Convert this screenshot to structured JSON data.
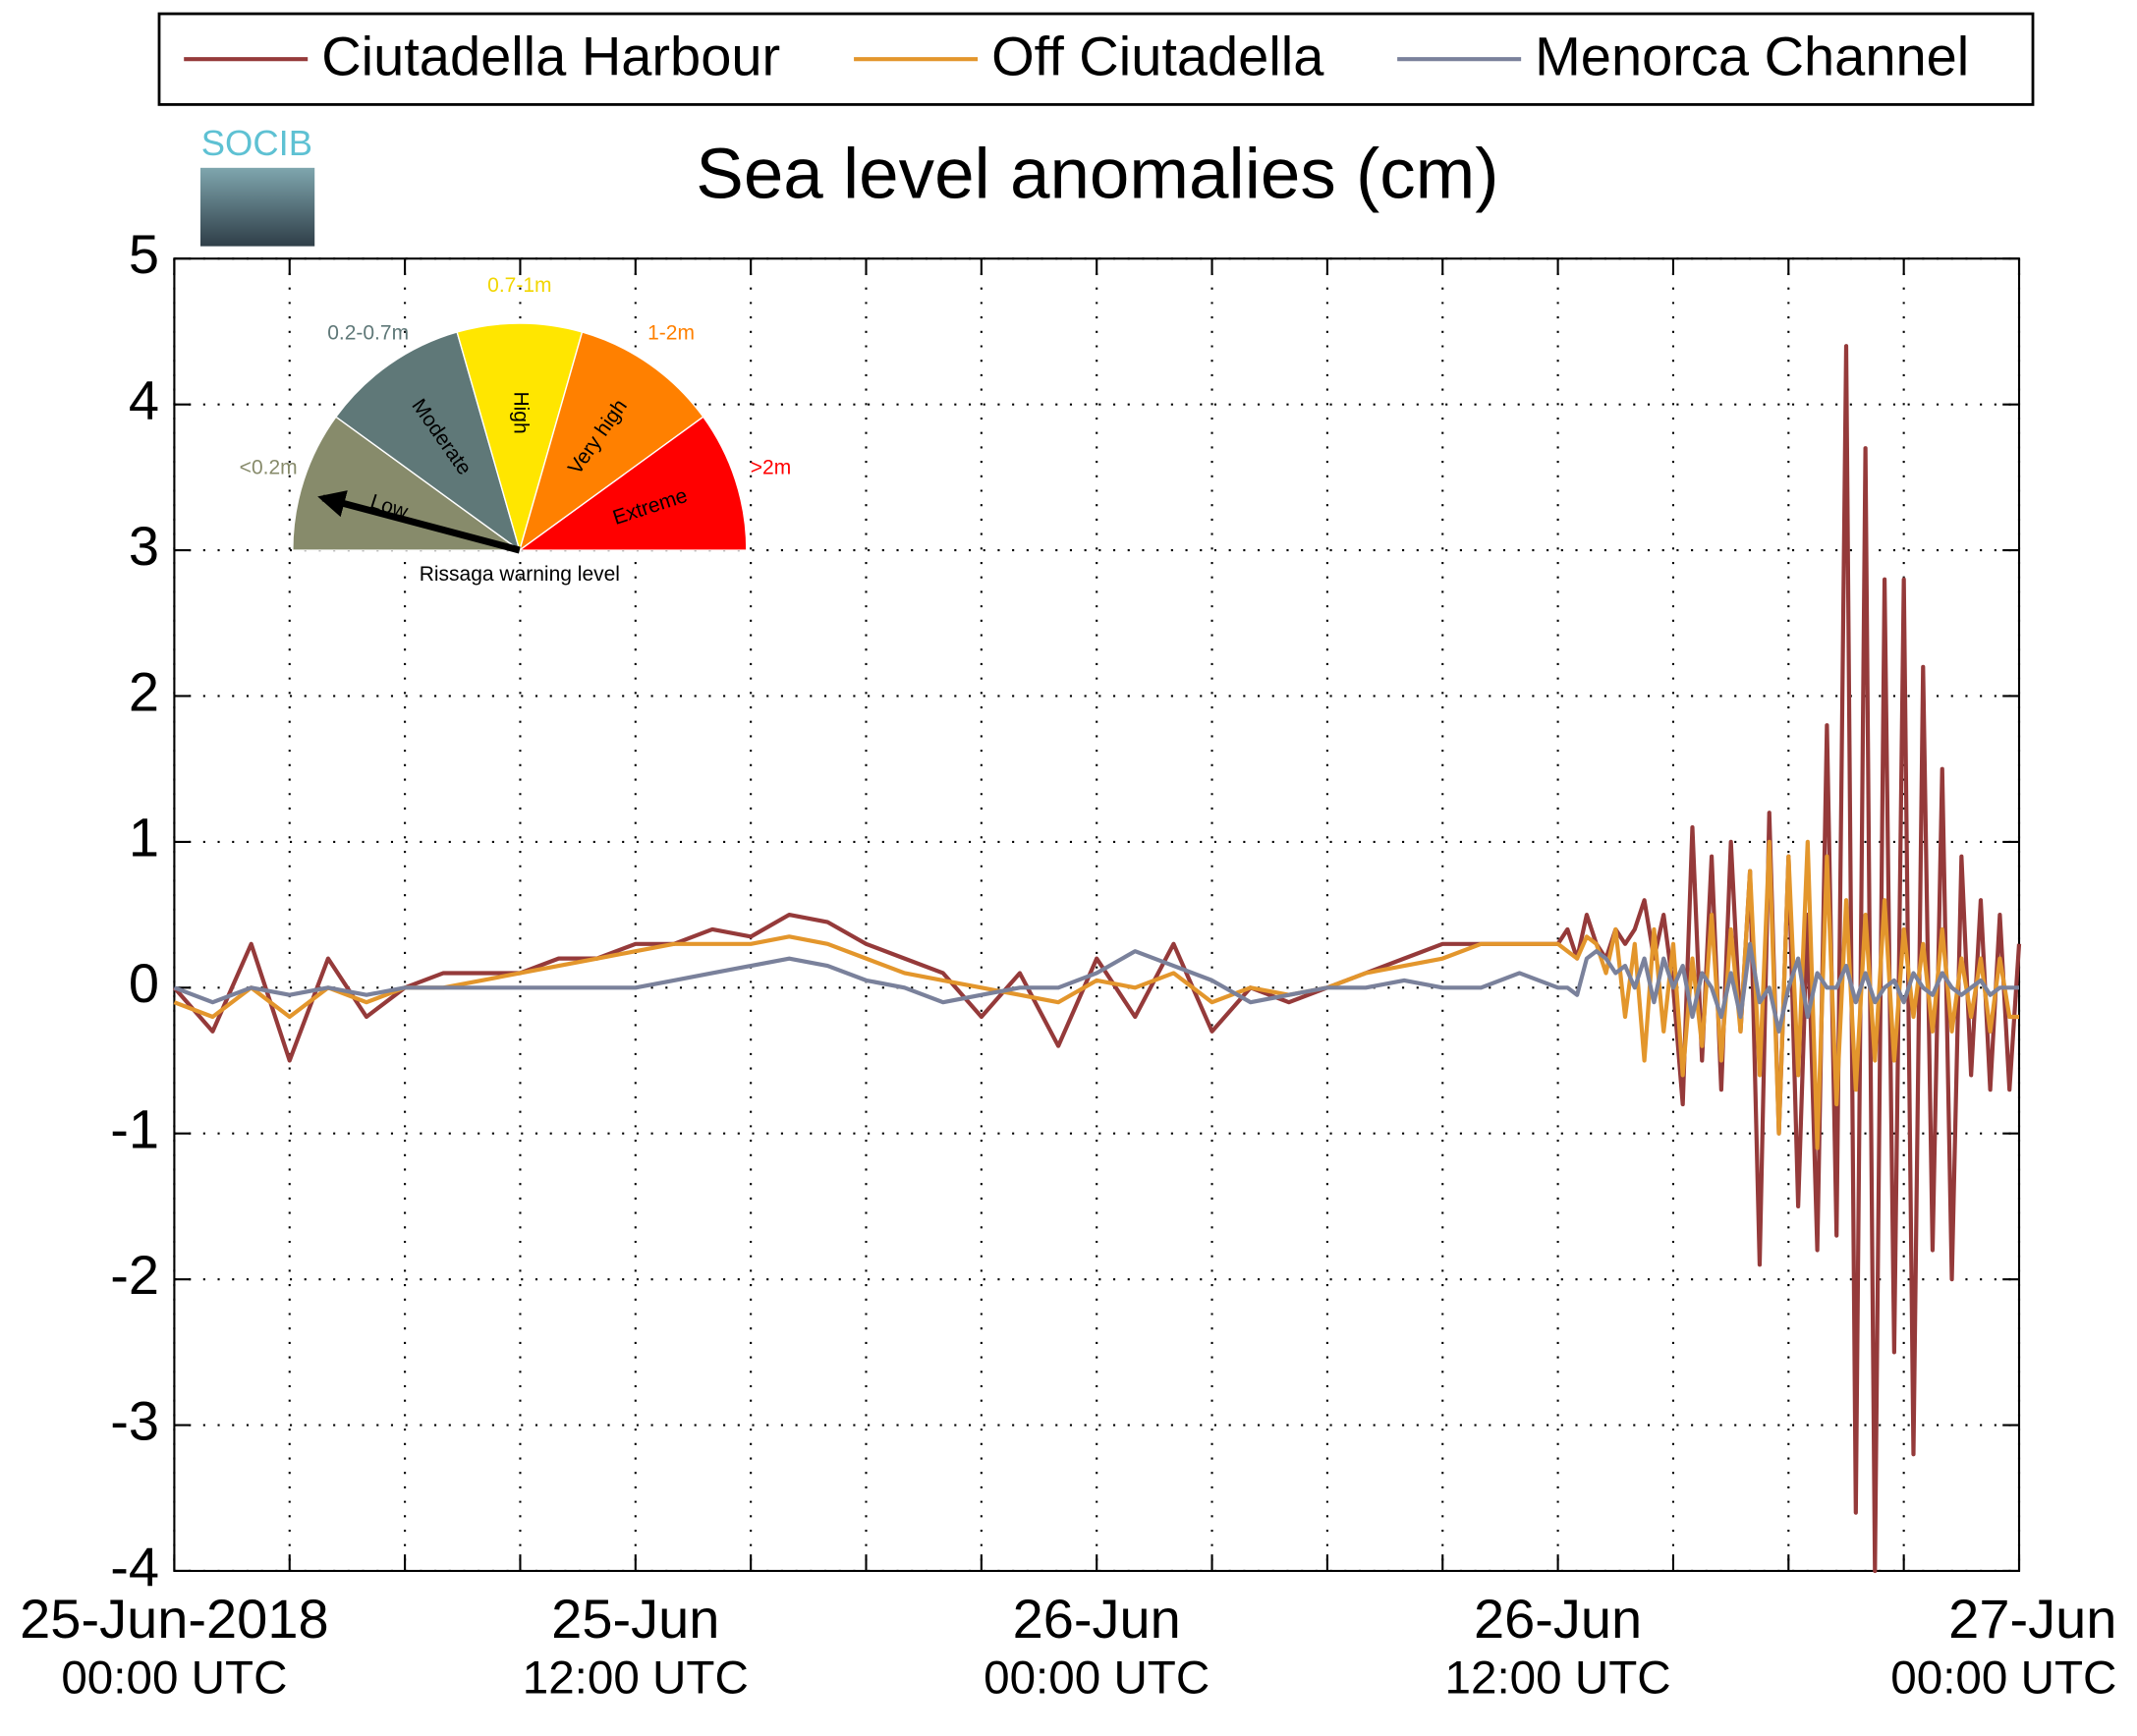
{
  "chart_data": {
    "type": "line",
    "title": "Sea level anomalies (cm)",
    "logo": "SOCIB",
    "x": [
      "2018-06-25T00:00",
      "2018-06-25T01:00",
      "2018-06-25T02:00",
      "2018-06-25T03:00",
      "2018-06-25T04:00",
      "2018-06-25T05:00",
      "2018-06-25T06:00",
      "2018-06-25T07:00",
      "2018-06-25T08:00",
      "2018-06-25T09:00",
      "2018-06-25T10:00",
      "2018-06-25T11:00",
      "2018-06-25T12:00",
      "2018-06-25T13:00",
      "2018-06-25T14:00",
      "2018-06-25T15:00",
      "2018-06-25T16:00",
      "2018-06-25T17:00",
      "2018-06-25T18:00",
      "2018-06-25T19:00",
      "2018-06-25T20:00",
      "2018-06-25T21:00",
      "2018-06-25T22:00",
      "2018-06-25T23:00",
      "2018-06-26T00:00",
      "2018-06-26T01:00",
      "2018-06-26T02:00",
      "2018-06-26T03:00",
      "2018-06-26T04:00",
      "2018-06-26T05:00",
      "2018-06-26T06:00",
      "2018-06-26T07:00",
      "2018-06-26T08:00",
      "2018-06-26T09:00",
      "2018-06-26T10:00",
      "2018-06-26T11:00",
      "2018-06-26T12:00",
      "2018-06-26T12:15",
      "2018-06-26T12:30",
      "2018-06-26T12:45",
      "2018-06-26T13:00",
      "2018-06-26T13:15",
      "2018-06-26T13:30",
      "2018-06-26T13:45",
      "2018-06-26T14:00",
      "2018-06-26T14:15",
      "2018-06-26T14:30",
      "2018-06-26T14:45",
      "2018-06-26T15:00",
      "2018-06-26T15:15",
      "2018-06-26T15:30",
      "2018-06-26T15:45",
      "2018-06-26T16:00",
      "2018-06-26T16:15",
      "2018-06-26T16:30",
      "2018-06-26T16:45",
      "2018-06-26T17:00",
      "2018-06-26T17:15",
      "2018-06-26T17:30",
      "2018-06-26T17:45",
      "2018-06-26T18:00",
      "2018-06-26T18:15",
      "2018-06-26T18:30",
      "2018-06-26T18:45",
      "2018-06-26T19:00",
      "2018-06-26T19:15",
      "2018-06-26T19:30",
      "2018-06-26T19:45",
      "2018-06-26T20:00",
      "2018-06-26T20:15",
      "2018-06-26T20:30",
      "2018-06-26T20:45",
      "2018-06-26T21:00",
      "2018-06-26T21:15",
      "2018-06-26T21:30",
      "2018-06-26T21:45",
      "2018-06-26T22:00",
      "2018-06-26T22:15",
      "2018-06-26T22:30",
      "2018-06-26T22:45",
      "2018-06-26T23:00",
      "2018-06-26T23:15",
      "2018-06-26T23:30",
      "2018-06-26T23:45",
      "2018-06-27T00:00"
    ],
    "series": [
      {
        "name": "Ciutadella Harbour",
        "color": "#953a3a",
        "values": [
          0.0,
          -0.3,
          0.3,
          -0.5,
          0.2,
          -0.2,
          0.0,
          0.1,
          0.1,
          0.1,
          0.2,
          0.2,
          0.3,
          0.3,
          0.4,
          0.35,
          0.5,
          0.45,
          0.3,
          0.2,
          0.1,
          -0.2,
          0.1,
          -0.4,
          0.2,
          -0.2,
          0.3,
          -0.3,
          0.0,
          -0.1,
          0.0,
          0.1,
          0.2,
          0.3,
          0.3,
          0.3,
          0.3,
          0.4,
          0.2,
          0.5,
          0.3,
          0.2,
          0.4,
          0.3,
          0.4,
          0.6,
          0.2,
          0.5,
          0.0,
          -0.8,
          1.1,
          -0.5,
          0.9,
          -0.7,
          1.0,
          -0.3,
          0.8,
          -1.9,
          1.2,
          -1.0,
          0.9,
          -1.5,
          0.5,
          -1.8,
          1.8,
          -1.7,
          4.4,
          -3.6,
          3.7,
          -4.0,
          2.8,
          -2.5,
          2.8,
          -3.2,
          2.2,
          -1.8,
          1.5,
          -2.0,
          0.9,
          -0.6,
          0.6,
          -0.7,
          0.5,
          -0.7,
          0.3
        ]
      },
      {
        "name": "Off Ciutadella",
        "color": "#e3962c",
        "values": [
          -0.1,
          -0.2,
          0.0,
          -0.2,
          0.0,
          -0.1,
          0.0,
          0.0,
          0.05,
          0.1,
          0.15,
          0.2,
          0.25,
          0.3,
          0.3,
          0.3,
          0.35,
          0.3,
          0.2,
          0.1,
          0.05,
          0.0,
          -0.05,
          -0.1,
          0.05,
          0.0,
          0.1,
          -0.1,
          0.0,
          -0.05,
          0.0,
          0.1,
          0.15,
          0.2,
          0.3,
          0.3,
          0.3,
          0.25,
          0.2,
          0.35,
          0.3,
          0.1,
          0.4,
          -0.2,
          0.3,
          -0.5,
          0.4,
          -0.3,
          0.3,
          -0.6,
          0.2,
          -0.4,
          0.5,
          -0.5,
          0.4,
          -0.3,
          0.8,
          -0.6,
          1.0,
          -1.0,
          0.9,
          -0.6,
          1.0,
          -1.1,
          0.9,
          -0.8,
          0.6,
          -0.7,
          0.5,
          -0.5,
          0.6,
          -0.5,
          0.4,
          -0.2,
          0.3,
          -0.3,
          0.4,
          -0.3,
          0.2,
          -0.2,
          0.2,
          -0.3,
          0.2,
          -0.2,
          -0.2
        ]
      },
      {
        "name": "Menorca Channel",
        "color": "#7a819b",
        "values": [
          0.0,
          -0.1,
          0.0,
          -0.05,
          0.0,
          -0.05,
          0.0,
          0.0,
          0.0,
          0.0,
          0.0,
          0.0,
          0.0,
          0.05,
          0.1,
          0.15,
          0.2,
          0.15,
          0.05,
          0.0,
          -0.1,
          -0.05,
          0.0,
          0.0,
          0.1,
          0.25,
          0.15,
          0.05,
          -0.1,
          -0.05,
          0.0,
          0.0,
          0.05,
          0.0,
          0.0,
          0.1,
          0.0,
          0.0,
          -0.05,
          0.2,
          0.25,
          0.2,
          0.1,
          0.15,
          0.0,
          0.2,
          -0.1,
          0.2,
          0.0,
          0.15,
          -0.2,
          0.1,
          0.0,
          -0.2,
          0.1,
          -0.2,
          0.3,
          -0.1,
          0.0,
          -0.3,
          0.0,
          0.2,
          -0.2,
          0.1,
          0.0,
          0.0,
          0.15,
          -0.1,
          0.1,
          -0.1,
          0.0,
          0.05,
          -0.1,
          0.1,
          0.0,
          -0.05,
          0.1,
          0.0,
          -0.05,
          0.0,
          0.05,
          -0.05,
          0.0,
          0.0,
          0.0
        ]
      }
    ],
    "xlim": [
      "2018-06-25T00:00",
      "2018-06-27T00:00"
    ],
    "xticks": [
      {
        "value": "2018-06-25T00:00",
        "label": "25-Jun-2018",
        "time": "00:00 UTC"
      },
      {
        "value": "2018-06-25T03:00"
      },
      {
        "value": "2018-06-25T06:00"
      },
      {
        "value": "2018-06-25T09:00"
      },
      {
        "value": "2018-06-25T12:00",
        "label": "25-Jun",
        "time": "12:00 UTC"
      },
      {
        "value": "2018-06-25T15:00"
      },
      {
        "value": "2018-06-25T18:00"
      },
      {
        "value": "2018-06-25T21:00"
      },
      {
        "value": "2018-06-26T00:00",
        "label": "26-Jun",
        "time": "00:00 UTC"
      },
      {
        "value": "2018-06-26T03:00"
      },
      {
        "value": "2018-06-26T06:00"
      },
      {
        "value": "2018-06-26T09:00"
      },
      {
        "value": "2018-06-26T12:00",
        "label": "26-Jun",
        "time": "12:00 UTC"
      },
      {
        "value": "2018-06-26T15:00"
      },
      {
        "value": "2018-06-26T18:00"
      },
      {
        "value": "2018-06-26T21:00"
      },
      {
        "value": "2018-06-27T00:00",
        "label": "27-Jun",
        "time": "00:00 UTC"
      }
    ],
    "ylim": [
      -4,
      5
    ],
    "yticks": [
      -4,
      -3,
      -2,
      -1,
      0,
      1,
      2,
      3,
      4,
      5
    ],
    "grid": true,
    "legend": "top",
    "gauge": {
      "title": "Rissaga warning level",
      "levels": [
        {
          "name": "Low",
          "range": "<0.2m",
          "color": "#878b6b",
          "label_color": "#878b6b"
        },
        {
          "name": "Moderate",
          "range": "0.2-0.7m",
          "color": "#5f7878",
          "label_color": "#5f7878"
        },
        {
          "name": "High",
          "range": "0.7-1m",
          "color": "#ffe600",
          "label_color": "#f2d600"
        },
        {
          "name": "Very high",
          "range": "1-2m",
          "color": "#ff8000",
          "label_color": "#ff8000"
        },
        {
          "name": "Extreme",
          "range": ">2m",
          "color": "#ff0000",
          "label_color": "#ff0000"
        }
      ]
    }
  }
}
